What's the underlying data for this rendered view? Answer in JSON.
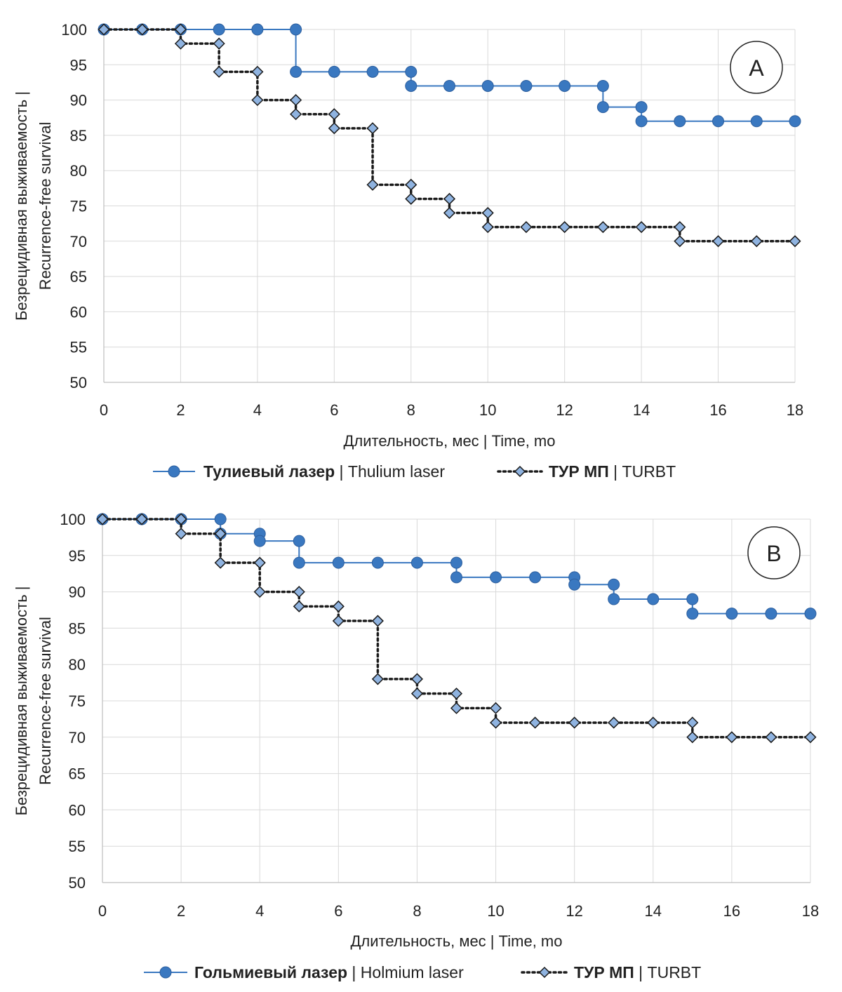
{
  "chart_data": [
    {
      "type": "line",
      "step": true,
      "panel_label": "A",
      "xlabel": "Длительность, мес | Time, mo",
      "ylabel_line1": "Безрецидивная выживаемость |",
      "ylabel_line2": "Recurrence-free survival",
      "xlim": [
        0,
        18
      ],
      "ylim": [
        50,
        100
      ],
      "x_ticks": [
        0,
        2,
        4,
        6,
        8,
        10,
        12,
        14,
        16,
        18
      ],
      "y_ticks": [
        100,
        95,
        90,
        85,
        80,
        75,
        70,
        65,
        60,
        55,
        50
      ],
      "grid": true,
      "legend_position": "bottom",
      "series": [
        {
          "name_bold": "Тулиевый лазер",
          "name_rest": " | Thulium laser",
          "style": "solid-circle",
          "color": "#3a78c0",
          "steps": [
            [
              0,
              100
            ],
            [
              5,
              94
            ],
            [
              8,
              92
            ],
            [
              13,
              89
            ],
            [
              14,
              87
            ],
            [
              18,
              87
            ]
          ],
          "markers": [
            [
              0,
              100
            ],
            [
              1,
              100
            ],
            [
              2,
              100
            ],
            [
              3,
              100
            ],
            [
              4,
              100
            ],
            [
              5,
              100
            ],
            [
              5,
              94
            ],
            [
              6,
              94
            ],
            [
              7,
              94
            ],
            [
              8,
              94
            ],
            [
              8,
              92
            ],
            [
              9,
              92
            ],
            [
              10,
              92
            ],
            [
              11,
              92
            ],
            [
              12,
              92
            ],
            [
              13,
              92
            ],
            [
              13,
              89
            ],
            [
              14,
              89
            ],
            [
              14,
              87
            ],
            [
              15,
              87
            ],
            [
              16,
              87
            ],
            [
              17,
              87
            ],
            [
              18,
              87
            ]
          ]
        },
        {
          "name_bold": "ТУР МП",
          "name_rest": " | TURBT",
          "style": "dotted-diamond",
          "color": "#1a1a1a",
          "marker_color": "#8fb3e0",
          "steps": [
            [
              0,
              100
            ],
            [
              2,
              98
            ],
            [
              3,
              94
            ],
            [
              4,
              90
            ],
            [
              5,
              88
            ],
            [
              6,
              86
            ],
            [
              7,
              78
            ],
            [
              8,
              76
            ],
            [
              9,
              74
            ],
            [
              10,
              72
            ],
            [
              15,
              70
            ],
            [
              18,
              70
            ]
          ],
          "markers": [
            [
              0,
              100
            ],
            [
              1,
              100
            ],
            [
              2,
              100
            ],
            [
              2,
              98
            ],
            [
              3,
              98
            ],
            [
              3,
              94
            ],
            [
              4,
              94
            ],
            [
              4,
              90
            ],
            [
              5,
              90
            ],
            [
              5,
              88
            ],
            [
              6,
              88
            ],
            [
              6,
              86
            ],
            [
              7,
              86
            ],
            [
              7,
              78
            ],
            [
              8,
              78
            ],
            [
              8,
              76
            ],
            [
              9,
              76
            ],
            [
              9,
              74
            ],
            [
              10,
              74
            ],
            [
              10,
              72
            ],
            [
              11,
              72
            ],
            [
              12,
              72
            ],
            [
              13,
              72
            ],
            [
              14,
              72
            ],
            [
              15,
              72
            ],
            [
              15,
              70
            ],
            [
              16,
              70
            ],
            [
              17,
              70
            ],
            [
              18,
              70
            ]
          ]
        }
      ]
    },
    {
      "type": "line",
      "step": true,
      "panel_label": "B",
      "xlabel": "Длительность, мес | Time, mo",
      "ylabel_line1": "Безрецидивная выживаемость |",
      "ylabel_line2": "Recurrence-free survival",
      "xlim": [
        0,
        18
      ],
      "ylim": [
        50,
        100
      ],
      "x_ticks": [
        0,
        2,
        4,
        6,
        8,
        10,
        12,
        14,
        16,
        18
      ],
      "y_ticks": [
        100,
        95,
        90,
        85,
        80,
        75,
        70,
        65,
        60,
        55,
        50
      ],
      "grid": true,
      "legend_position": "bottom",
      "series": [
        {
          "name_bold": "Гольмиевый лазер",
          "name_rest": " | Holmium laser",
          "style": "solid-circle",
          "color": "#3a78c0",
          "steps": [
            [
              0,
              100
            ],
            [
              3,
              98
            ],
            [
              4,
              97
            ],
            [
              5,
              94
            ],
            [
              9,
              92
            ],
            [
              12,
              91
            ],
            [
              13,
              89
            ],
            [
              15,
              87
            ],
            [
              18,
              87
            ]
          ],
          "markers": [
            [
              0,
              100
            ],
            [
              1,
              100
            ],
            [
              2,
              100
            ],
            [
              3,
              100
            ],
            [
              3,
              98
            ],
            [
              4,
              98
            ],
            [
              4,
              97
            ],
            [
              5,
              97
            ],
            [
              5,
              94
            ],
            [
              6,
              94
            ],
            [
              7,
              94
            ],
            [
              8,
              94
            ],
            [
              9,
              94
            ],
            [
              9,
              92
            ],
            [
              10,
              92
            ],
            [
              11,
              92
            ],
            [
              12,
              92
            ],
            [
              12,
              91
            ],
            [
              13,
              91
            ],
            [
              13,
              89
            ],
            [
              14,
              89
            ],
            [
              15,
              89
            ],
            [
              15,
              87
            ],
            [
              16,
              87
            ],
            [
              17,
              87
            ],
            [
              18,
              87
            ]
          ]
        },
        {
          "name_bold": "ТУР МП",
          "name_rest": " | TURBT",
          "style": "dotted-diamond",
          "color": "#1a1a1a",
          "marker_color": "#8fb3e0",
          "steps": [
            [
              0,
              100
            ],
            [
              2,
              98
            ],
            [
              3,
              94
            ],
            [
              4,
              90
            ],
            [
              5,
              88
            ],
            [
              6,
              86
            ],
            [
              7,
              78
            ],
            [
              8,
              76
            ],
            [
              9,
              74
            ],
            [
              10,
              72
            ],
            [
              15,
              70
            ],
            [
              18,
              70
            ]
          ],
          "markers": [
            [
              0,
              100
            ],
            [
              1,
              100
            ],
            [
              2,
              100
            ],
            [
              2,
              98
            ],
            [
              3,
              98
            ],
            [
              3,
              94
            ],
            [
              4,
              94
            ],
            [
              4,
              90
            ],
            [
              5,
              90
            ],
            [
              5,
              88
            ],
            [
              6,
              88
            ],
            [
              6,
              86
            ],
            [
              7,
              86
            ],
            [
              7,
              78
            ],
            [
              8,
              78
            ],
            [
              8,
              76
            ],
            [
              9,
              76
            ],
            [
              9,
              74
            ],
            [
              10,
              74
            ],
            [
              10,
              72
            ],
            [
              11,
              72
            ],
            [
              12,
              72
            ],
            [
              13,
              72
            ],
            [
              14,
              72
            ],
            [
              15,
              72
            ],
            [
              15,
              70
            ],
            [
              16,
              70
            ],
            [
              17,
              70
            ],
            [
              18,
              70
            ]
          ]
        }
      ]
    }
  ]
}
